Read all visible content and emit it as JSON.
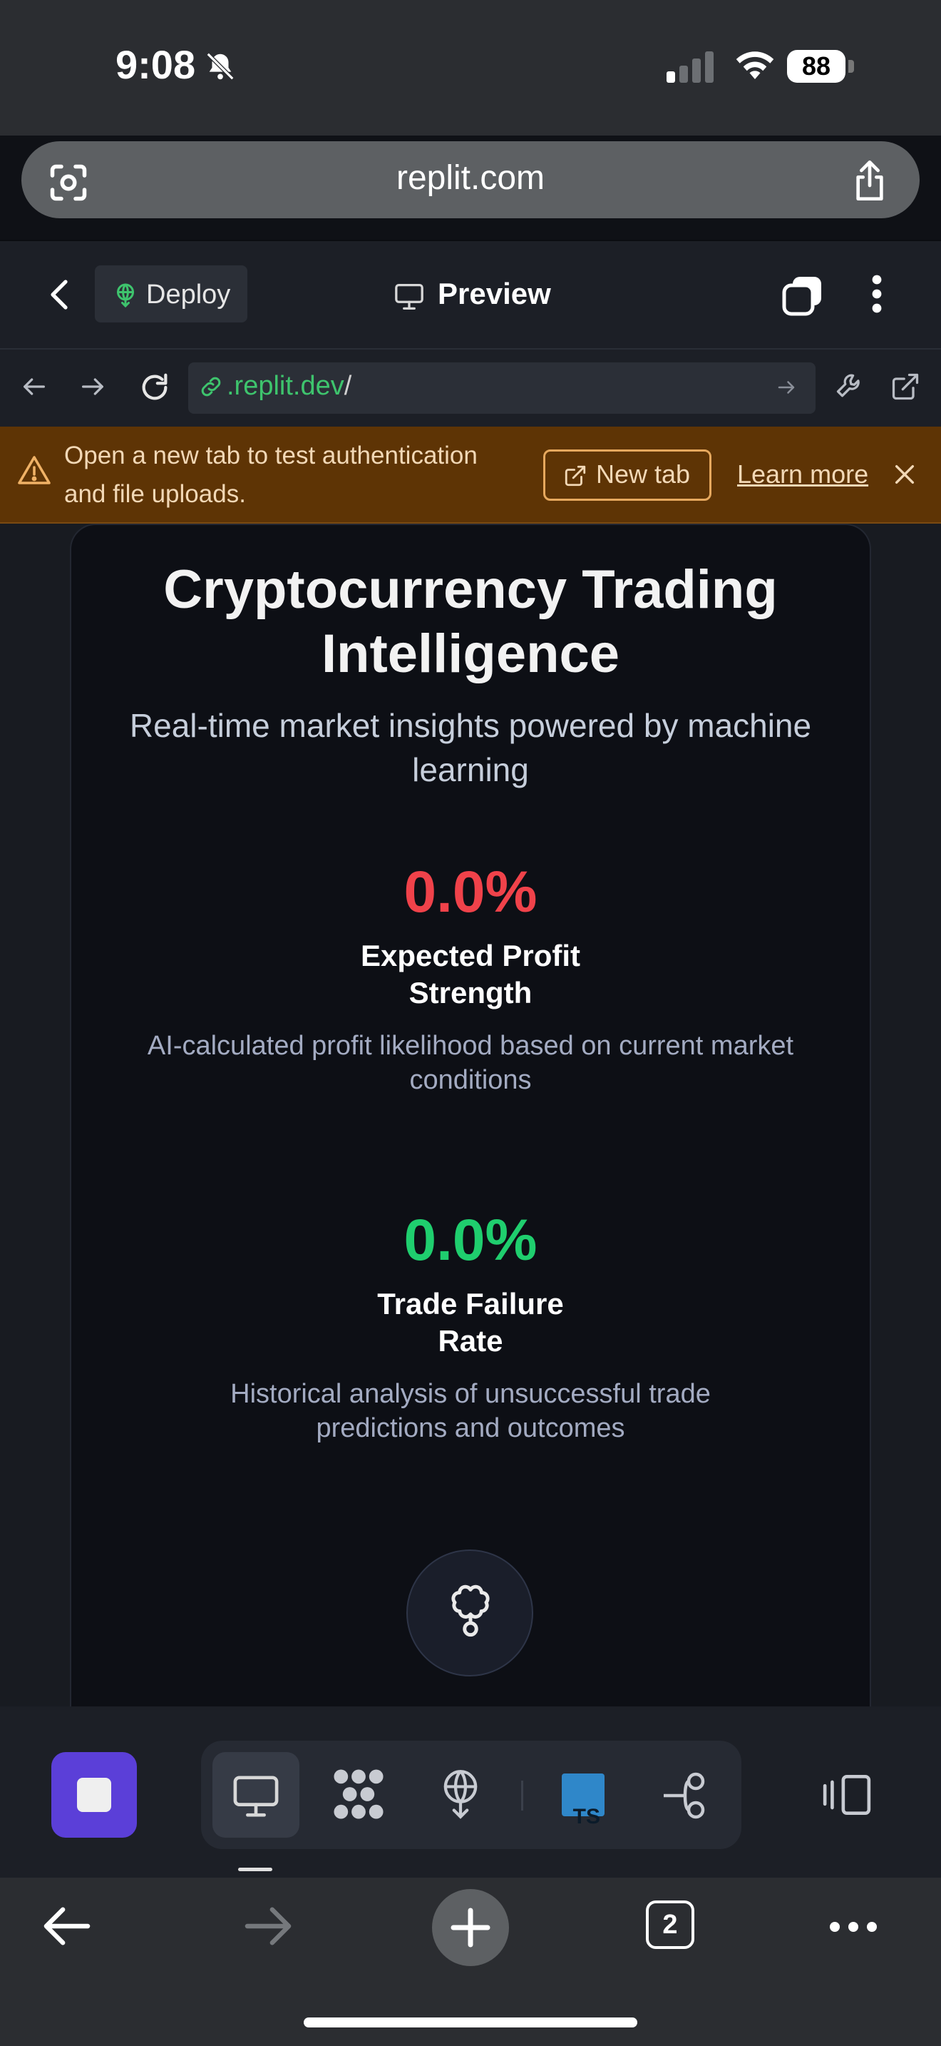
{
  "status_bar": {
    "time": "9:08",
    "battery": "88"
  },
  "browser": {
    "url": "replit.com"
  },
  "replit_header": {
    "deploy_label": "Deploy",
    "preview_label": "Preview"
  },
  "webview": {
    "address_host": ".replit.dev",
    "address_path": "/"
  },
  "banner": {
    "message": "Open a new tab to test authentication and file uploads.",
    "new_tab_label": "New tab",
    "learn_more_label": "Learn more"
  },
  "page": {
    "title": "Cryptocurrency Trading Intelligence",
    "subtitle": "Real-time market insights powered by machine learning",
    "metrics": [
      {
        "value": "0.0%",
        "label": "Expected Profit Strength",
        "description": "AI-calculated profit likelihood based on current market conditions",
        "color": "#f0424a"
      },
      {
        "value": "0.0%",
        "label": "Trade Failure Rate",
        "description": "Historical analysis of unsuccessful trade predictions and outcomes",
        "color": "#1fce6e"
      }
    ]
  },
  "toolbar": {
    "ts_badge": "TS"
  },
  "safari_bottom": {
    "tab_count": "2"
  },
  "colors": {
    "accent": "#5b3fd8",
    "banner_bg": "#5e3405",
    "link_green": "#3ec46d"
  }
}
